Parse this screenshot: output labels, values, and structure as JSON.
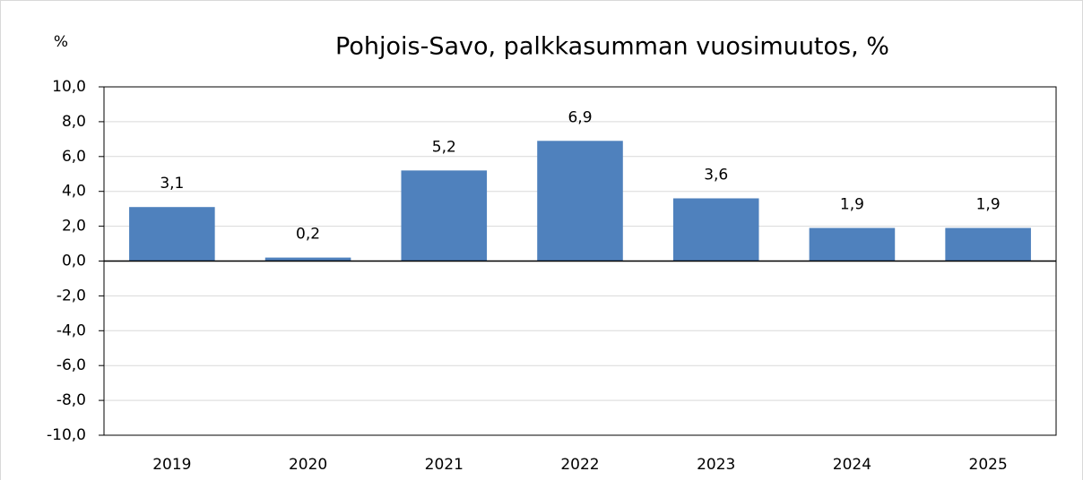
{
  "chart_data": {
    "type": "bar",
    "title": "Pohjois-Savo, palkkasumman vuosimuutos, %",
    "y_label": "%",
    "categories": [
      "2019",
      "2020",
      "2021",
      "2022",
      "2023",
      "2024",
      "2025"
    ],
    "values": [
      3.1,
      0.2,
      5.2,
      6.9,
      3.6,
      1.9,
      1.9
    ],
    "value_labels": [
      "3,1",
      "0,2",
      "5,2",
      "6,9",
      "3,6",
      "1,9",
      "1,9"
    ],
    "color": "#4f81bd",
    "ylim": [
      -10,
      10
    ],
    "yticks": [
      {
        "value": -10,
        "label": "-10,0"
      },
      {
        "value": -8,
        "label": "-8,0"
      },
      {
        "value": -6,
        "label": "-6,0"
      },
      {
        "value": -4,
        "label": "-4,0"
      },
      {
        "value": -2,
        "label": "-2,0"
      },
      {
        "value": 0,
        "label": "0,0"
      },
      {
        "value": 2,
        "label": "2,0"
      },
      {
        "value": 4,
        "label": "4,0"
      },
      {
        "value": 6,
        "label": "6,0"
      },
      {
        "value": 8,
        "label": "8,0"
      },
      {
        "value": 10,
        "label": "10,0"
      }
    ],
    "grid": true
  }
}
